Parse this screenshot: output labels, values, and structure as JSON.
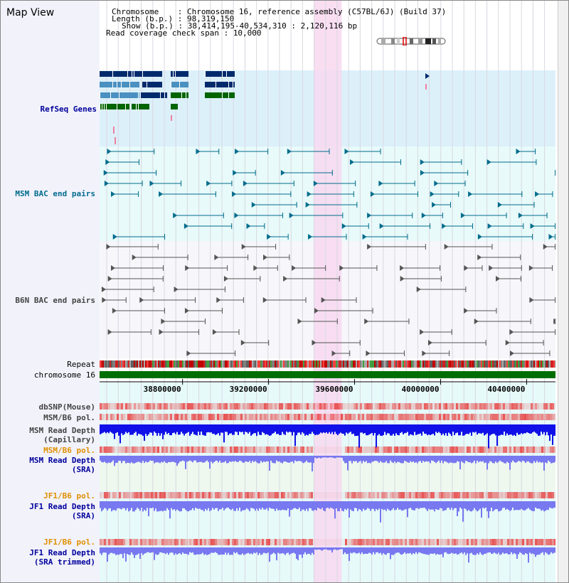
{
  "title": "Map View",
  "info": {
    "chromosome_label": "Chromosome    : ",
    "chromosome_value": "Chromosome 16, reference assembly (C57BL/6J) (Build 37)",
    "length_label": "Length (b.p.) : ",
    "length_value": "98,319,150",
    "show_label": "Show (b.p.) : ",
    "show_value": "38,414,195-40,534,310 : 2,120,116 bp",
    "coverage_label": "Read coverage check span : ",
    "coverage_value": "10,000"
  },
  "tracks": {
    "refseq": "RefSeq Genes",
    "msm_bac": "MSM BAC end pairs",
    "b6n_bac": "B6N BAC end pairs",
    "repeat": "Repeat",
    "chromosome": "chromosome 16",
    "dbsnp": "dbSNP(Mouse)",
    "msm_b6_pol_1": "MSM/B6 pol.",
    "msm_read_depth_cap_1": "MSM Read Depth",
    "msm_read_depth_cap_2": "(Capillary)",
    "msm_b6_pol_2": "MSM/B6 pol.",
    "msm_read_depth_sra_1": "MSM Read Depth",
    "msm_read_depth_sra_2": "(SRA)",
    "jf1_b6_pol_1": "JF1/B6 pol.",
    "jf1_read_depth_sra_1": "JF1 Read Depth",
    "jf1_read_depth_sra_2": "(SRA)",
    "jf1_b6_pol_2": "JF1/B6 pol.",
    "jf1_read_depth_trim_1": "JF1 Read Depth",
    "jf1_read_depth_trim_2": "(SRA trimmed)"
  },
  "axis": {
    "ticks": [
      "38800000",
      "39200000",
      "39600000",
      "40000000",
      "40400000"
    ],
    "range_start": 38414195,
    "range_end": 40534310,
    "highlight_start": 39410000,
    "highlight_end": 39540000
  },
  "colors": {
    "refseq_bg": "#dcf0fa",
    "bac_bg": "#e8fafa",
    "highlight": "#f8d8f0",
    "navy": "#002060",
    "mid_blue": "#4a90c0",
    "green": "#006400",
    "teal": "#006c8c",
    "gray_line": "#555555",
    "chrom_green": "#006e00",
    "depth_dark": "#1010e8",
    "depth_light": "#7878f0",
    "pol_red": "#e84040"
  },
  "icons": {
    "ideogram": "chromosome-ideogram",
    "scrollbar": "vertical-scrollbar"
  }
}
